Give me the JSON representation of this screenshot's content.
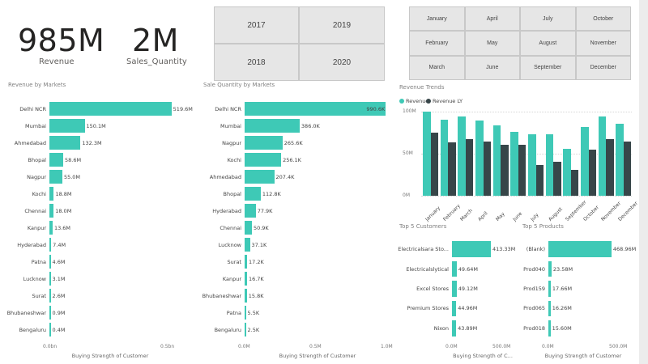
{
  "colors": {
    "teal": "#3ec9b6",
    "dark": "#374649"
  },
  "kpis": [
    {
      "value": "985M",
      "label": "Revenue"
    },
    {
      "value": "2M",
      "label": "Sales_Quantity"
    }
  ],
  "years": [
    "2017",
    "2019",
    "2018",
    "2020"
  ],
  "months": [
    "January",
    "April",
    "July",
    "October",
    "February",
    "May",
    "August",
    "November",
    "March",
    "June",
    "September",
    "December"
  ],
  "revenue_by_markets": {
    "title": "Revenue by Markets",
    "type": "bar",
    "categories": [
      "Delhi NCR",
      "Mumbai",
      "Ahmedabad",
      "Bhopal",
      "Nagpur",
      "Kochi",
      "Chennai",
      "Kanpur",
      "Hyderabad",
      "Patna",
      "Lucknow",
      "Surat",
      "Bhubaneshwar",
      "Bengaluru"
    ],
    "values": [
      519.6,
      150.1,
      132.3,
      58.6,
      55.0,
      18.8,
      18.0,
      13.6,
      7.4,
      4.6,
      3.1,
      2.6,
      0.9,
      0.4
    ],
    "labels": [
      "519.6M",
      "150.1M",
      "132.3M",
      "58.6M",
      "55.0M",
      "18.8M",
      "18.0M",
      "13.6M",
      "7.4M",
      "4.6M",
      "3.1M",
      "2.6M",
      "0.9M",
      "0.4M"
    ],
    "xticks": [
      "0.0bn",
      "0.5bn"
    ],
    "xlabel": "Buying Strength of Customer"
  },
  "sales_qty_by_markets": {
    "title": "Sale Quantity by Markets",
    "type": "bar",
    "categories": [
      "Delhi NCR",
      "Mumbai",
      "Nagpur",
      "Kochi",
      "Ahmedabad",
      "Bhopal",
      "Hyderabad",
      "Chennai",
      "Lucknow",
      "Surat",
      "Kanpur",
      "Bhubaneshwar",
      "Patna",
      "Bengaluru"
    ],
    "values": [
      990.6,
      386.0,
      265.6,
      256.1,
      207.4,
      112.8,
      77.9,
      50.9,
      37.1,
      17.2,
      16.7,
      15.8,
      5.5,
      2.5
    ],
    "labels": [
      "990.6K",
      "386.0K",
      "265.6K",
      "256.1K",
      "207.4K",
      "112.8K",
      "77.9K",
      "50.9K",
      "37.1K",
      "17.2K",
      "16.7K",
      "15.8K",
      "5.5K",
      "2.5K"
    ],
    "xticks": [
      "0.0M",
      "0.5M",
      "1.0M"
    ],
    "xlabel": "Buying Strength of Customer"
  },
  "revenue_trends": {
    "title": "Revenue Trends",
    "type": "bar",
    "legend": [
      "Revenue",
      "Revenue LY"
    ],
    "categories": [
      "January",
      "February",
      "March",
      "April",
      "May",
      "June",
      "July",
      "August",
      "September",
      "October",
      "November",
      "December"
    ],
    "series": [
      {
        "name": "Revenue",
        "values": [
          100,
          90,
          94,
          89,
          84,
          76,
          73,
          73,
          56,
          82,
          94,
          86
        ]
      },
      {
        "name": "Revenue LY",
        "values": [
          75,
          63,
          67,
          64,
          61,
          61,
          37,
          40,
          31,
          55,
          67,
          64
        ]
      }
    ],
    "yticks": [
      "100M",
      "50M",
      "0M"
    ]
  },
  "top5_customers": {
    "title": "Top 5  Customers",
    "type": "bar",
    "categories": [
      "Electricalsara Sto...",
      "Electricalslytical",
      "Excel Stores",
      "Premium Stores",
      "Nixon"
    ],
    "values": [
      413.33,
      49.64,
      49.12,
      44.96,
      43.89
    ],
    "labels": [
      "413.33M",
      "49.64M",
      "49.12M",
      "44.96M",
      "43.89M"
    ],
    "xticks": [
      "0.0M",
      "500.0M"
    ],
    "xlabel": "Buying Strength of C..."
  },
  "top5_products": {
    "title": "Top 5  Products",
    "type": "bar",
    "categories": [
      "(Blank)",
      "Prod040",
      "Prod159",
      "Prod065",
      "Prod018"
    ],
    "values": [
      468.96,
      23.58,
      17.66,
      16.26,
      15.6
    ],
    "labels": [
      "468.96M",
      "23.58M",
      "17.66M",
      "16.26M",
      "15.60M"
    ],
    "xticks": [
      "0.0M",
      "500.0M"
    ],
    "xlabel": "Buying Strength of Customer"
  }
}
